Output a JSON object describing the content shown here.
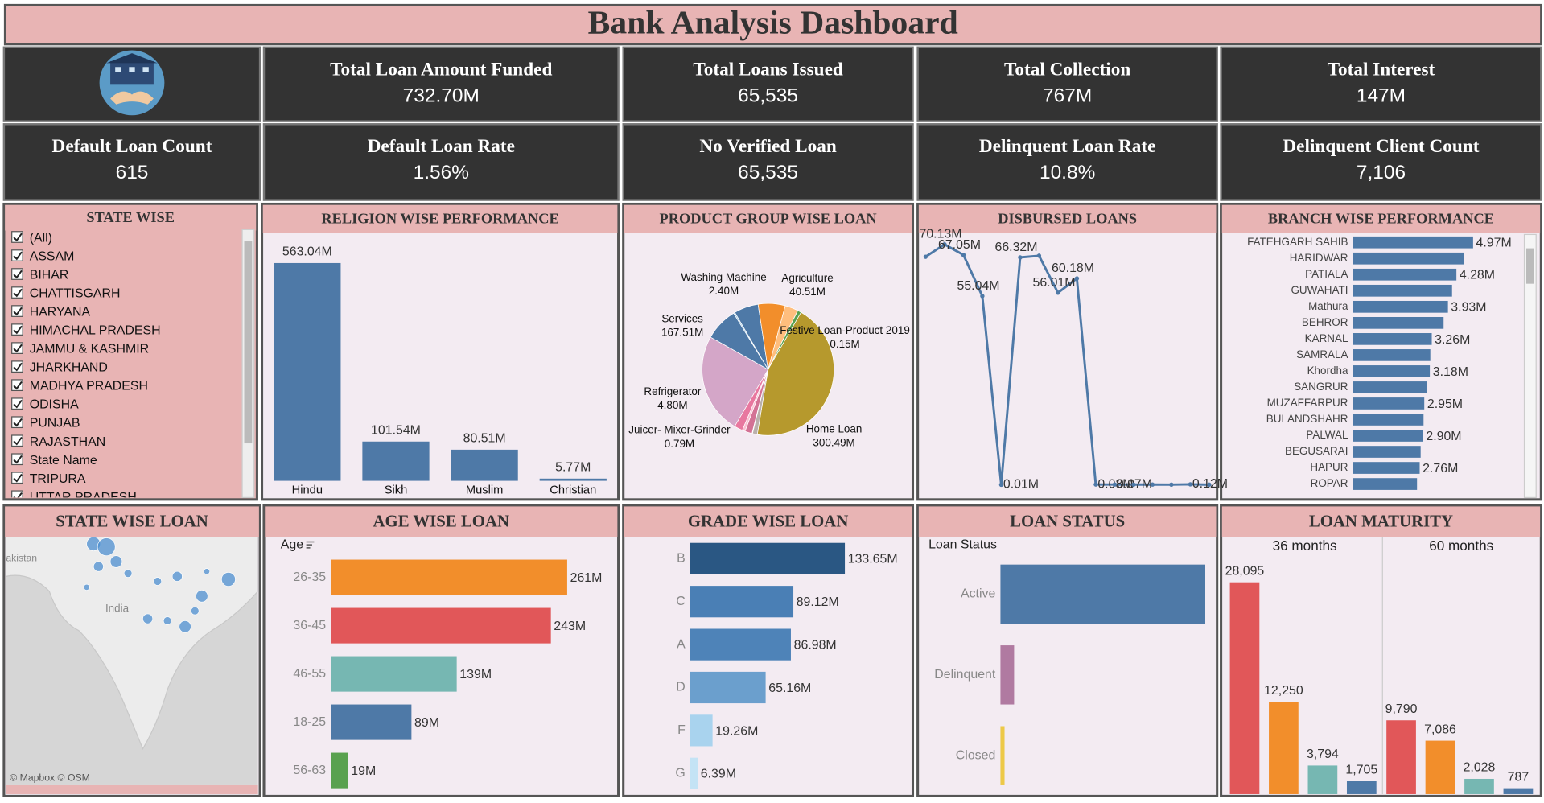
{
  "header": {
    "title": "Bank Analysis Dashboard"
  },
  "kpis": [
    {
      "label": "Total Loan Amount Funded",
      "value": "732.70M"
    },
    {
      "label": "Total Loans Issued",
      "value": "65,535"
    },
    {
      "label": "Total Collection",
      "value": "767M"
    },
    {
      "label": "Total Interest",
      "value": "147M"
    },
    {
      "label": "Default Loan Count",
      "value": "615"
    },
    {
      "label": "Default Loan Rate",
      "value": "1.56%"
    },
    {
      "label": "No Verified Loan",
      "value": "65,535"
    },
    {
      "label": "Delinquent Loan Rate",
      "value": "10.8%"
    },
    {
      "label": "Delinquent Client Count",
      "value": "7,106"
    }
  ],
  "state_filter": {
    "title": "STATE WISE",
    "items": [
      "(All)",
      "ASSAM",
      "BIHAR",
      "CHATTISGARH",
      "HARYANA",
      "HIMACHAL PRADESH",
      "JAMMU & KASHMIR",
      "JHARKHAND",
      "MADHYA PRADESH",
      "ODISHA",
      "PUNJAB",
      "RAJASTHAN",
      "State Name",
      "TRIPURA",
      "UTTAR PRADESH"
    ]
  },
  "chart_data": [
    {
      "type": "bar",
      "title": "RELIGION WISE PERFORMANCE",
      "categories": [
        "Hindu",
        "Sikh",
        "Muslim",
        "Christian"
      ],
      "values": [
        563.04,
        101.54,
        80.51,
        5.77
      ],
      "value_labels": [
        "563.04M",
        "101.54M",
        "80.51M",
        "5.77M"
      ],
      "color": "#4e79a7"
    },
    {
      "type": "pie",
      "title": "PRODUCT GROUP WISE LOAN",
      "categories": [
        "Washing Machine",
        "Agriculture",
        null,
        null,
        "Festive Loan-Product 2019",
        null,
        "Home Loan",
        null,
        "Juicer- Mixer-Grinder",
        null,
        "Refrigerator",
        null,
        "Services",
        null
      ],
      "values": [
        2.4,
        40.51,
        45,
        22,
        0.15,
        6,
        300.49,
        8,
        0.79,
        12,
        4.8,
        14,
        167.51,
        55
      ],
      "value_labels": [
        "2.40M",
        "40.51M",
        null,
        null,
        "0.15M",
        null,
        "300.49M",
        null,
        "0.79M",
        null,
        "4.80M",
        null,
        "167.51M",
        null
      ],
      "colors": [
        "#a0cbe8",
        "#4e79a7",
        "#f28e2b",
        "#ffbe7d",
        "#8cd17d",
        "#59a14f",
        "#b6992d",
        "#bab0ac",
        "#9d7660",
        "#d37295",
        "#fabfd2",
        "#e8779f",
        "#d4a6c8",
        "#4e79a7"
      ]
    },
    {
      "type": "line",
      "title": "DISBURSED LOANS",
      "values": [
        66.5,
        70.13,
        67.05,
        55.04,
        0.01,
        66.32,
        66.8,
        56.01,
        60.18,
        0.08,
        0.07,
        0.05,
        0.06,
        0.04,
        0.12,
        0.03
      ],
      "value_labels": [
        null,
        "70.13M",
        "67.05M",
        "55.04M",
        "0.01M",
        "66.32M",
        null,
        "56.01M",
        "60.18M",
        "0.08M",
        "0.07M",
        null,
        null,
        null,
        "0.12M",
        null
      ],
      "color": "#4e79a7"
    },
    {
      "type": "hbar",
      "title": "BRANCH WISE PERFORMANCE",
      "categories": [
        "FATEHGARH SAHIB",
        "HARIDWAR",
        "PATIALA",
        "GUWAHATI",
        "Mathura",
        "BEHROR",
        "KARNAL",
        "SAMRALA",
        "Khordha",
        "SANGRUR",
        "MUZAFFARPUR",
        "BULANDSHAHR",
        "PALWAL",
        "BEGUSARAI",
        "HAPUR",
        "ROPAR"
      ],
      "values": [
        4.97,
        4.6,
        4.28,
        4.1,
        3.93,
        3.75,
        3.26,
        3.2,
        3.18,
        3.05,
        2.95,
        2.92,
        2.9,
        2.8,
        2.76,
        2.65
      ],
      "value_labels": [
        "4.97M",
        null,
        "4.28M",
        null,
        "3.93M",
        null,
        "3.26M",
        null,
        "3.18M",
        null,
        "2.95M",
        null,
        "2.90M",
        null,
        "2.76M",
        null
      ],
      "color": "#4e79a7"
    },
    {
      "type": "map",
      "title": "STATE WISE LOAN",
      "labels": [
        "akistan",
        "India"
      ],
      "attribution": "© Mapbox © OSM"
    },
    {
      "type": "hbar",
      "title": "AGE WISE LOAN",
      "axis_title": "Age",
      "categories": [
        "26-35",
        "36-45",
        "46-55",
        "18-25",
        "56-63"
      ],
      "values": [
        261,
        243,
        139,
        89,
        19
      ],
      "value_labels": [
        "261M",
        "243M",
        "139M",
        "89M",
        "19M"
      ],
      "colors": [
        "#f28e2b",
        "#e15759",
        "#76b7b2",
        "#4e79a7",
        "#59a14f"
      ]
    },
    {
      "type": "hbar",
      "title": "GRADE WISE LOAN",
      "categories": [
        "B",
        "C",
        "A",
        "D",
        "F",
        "G"
      ],
      "values": [
        133.65,
        89.12,
        86.98,
        65.16,
        19.26,
        6.39
      ],
      "value_labels": [
        "133.65M",
        "89.12M",
        "86.98M",
        "65.16M",
        "19.26M",
        "6.39M"
      ],
      "colors": [
        "#2a5783",
        "#4a7fb5",
        "#4e83b8",
        "#6b9fcd",
        "#a9d3ee",
        "#c4e3f5"
      ]
    },
    {
      "type": "hbar",
      "title": "LOAN STATUS",
      "axis_title": "Loan Status",
      "categories": [
        "Active",
        "Delinquent",
        "Closed"
      ],
      "values": [
        60000,
        4000,
        1200
      ],
      "colors": [
        "#4e79a7",
        "#b07aa1",
        "#edc948"
      ]
    },
    {
      "type": "grouped_bar",
      "title": "LOAN  MATURITY",
      "series": [
        {
          "name": "36 months",
          "values": [
            28095,
            12250,
            3794,
            1705
          ],
          "value_labels": [
            "28,095",
            "12,250",
            "3,794",
            "1,705"
          ]
        },
        {
          "name": "60 months",
          "values": [
            9790,
            7086,
            2028,
            787
          ],
          "value_labels": [
            "9,790",
            "7,086",
            "2,028",
            "787"
          ]
        }
      ],
      "colors": [
        "#e15759",
        "#f28e2b",
        "#76b7b2",
        "#4e79a7"
      ]
    }
  ]
}
